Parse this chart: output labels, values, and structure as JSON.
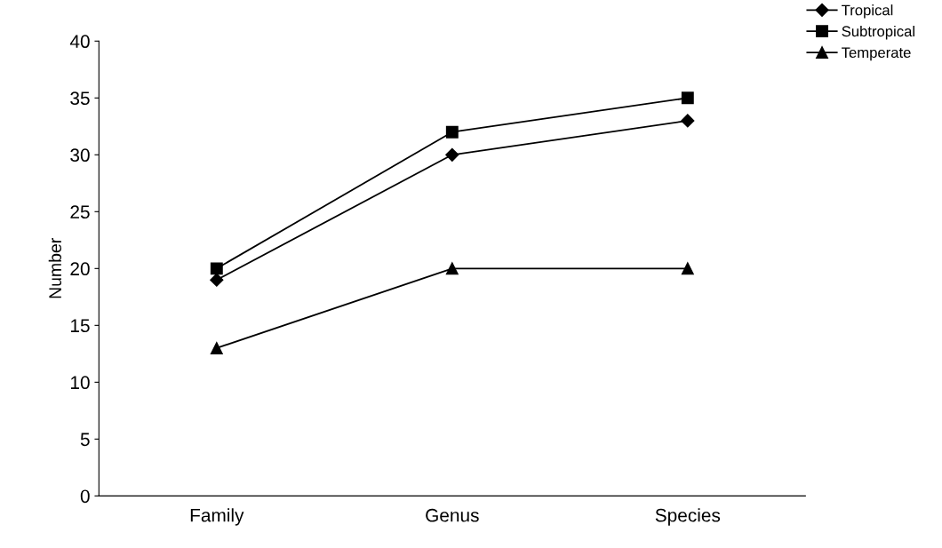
{
  "chart_data": {
    "type": "line",
    "ylabel": "Number",
    "categories": [
      "Family",
      "Genus",
      "Species"
    ],
    "series": [
      {
        "name": "Tropical",
        "color": "#000000",
        "marker": "diamond",
        "values": [
          19,
          30,
          33
        ]
      },
      {
        "name": "Subtropical",
        "color": "#000000",
        "marker": "square",
        "values": [
          20,
          32,
          35
        ]
      },
      {
        "name": "Temperate",
        "color": "#000000",
        "marker": "triangle",
        "values": [
          13,
          20,
          20
        ]
      }
    ],
    "ylim": [
      0,
      40
    ],
    "yticks": [
      0,
      5,
      10,
      15,
      20,
      25,
      30,
      35,
      40
    ],
    "grid": false,
    "legend": "top right",
    "line_style": "solid"
  }
}
